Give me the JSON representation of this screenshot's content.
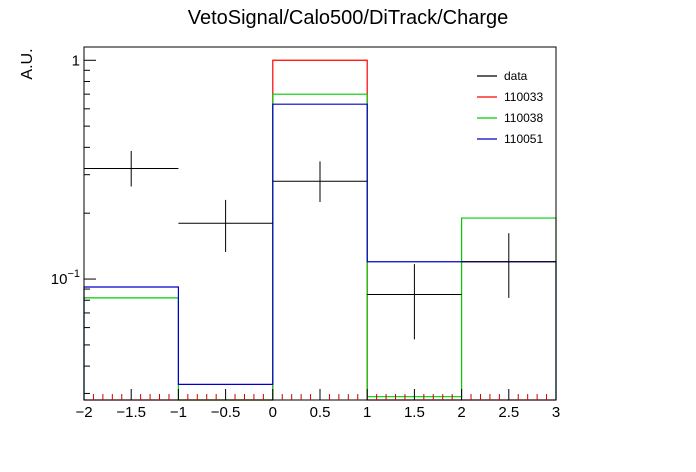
{
  "chart_data": {
    "type": "bar",
    "title": "VetoSignal/Calo500/DiTrack/Charge",
    "xlabel": "",
    "ylabel": "A.U.",
    "xlim": [
      -2,
      3
    ],
    "ylim": [
      0.028,
      1.15
    ],
    "yscale": "log",
    "grid": false,
    "legend_position": "top-right",
    "bin_edges": [
      -2,
      -1,
      0,
      1,
      2,
      3
    ],
    "x_ticks": [
      {
        "v": -2,
        "label": "−2"
      },
      {
        "v": -1.5,
        "label": "−1.5"
      },
      {
        "v": -1,
        "label": "−1"
      },
      {
        "v": -0.5,
        "label": "−0.5"
      },
      {
        "v": 0,
        "label": "0"
      },
      {
        "v": 0.5,
        "label": "0.5"
      },
      {
        "v": 1,
        "label": "1"
      },
      {
        "v": 1.5,
        "label": "1.5"
      },
      {
        "v": 2,
        "label": "2"
      },
      {
        "v": 2.5,
        "label": "2.5"
      },
      {
        "v": 3,
        "label": "3"
      }
    ],
    "y_ticks": [
      {
        "v": 1,
        "label": "1",
        "sup": ""
      },
      {
        "v": 0.1,
        "label": "10",
        "sup": "−1"
      }
    ],
    "series": [
      {
        "name": "110033",
        "kind": "hist",
        "color": "#ff0000",
        "values": [
          0.0,
          0.0,
          1.0,
          0.0,
          0.0
        ]
      },
      {
        "name": "110038",
        "kind": "hist",
        "color": "#00cc00",
        "values": [
          0.082,
          0.0,
          0.7,
          0.029,
          0.19
        ]
      },
      {
        "name": "110051",
        "kind": "hist",
        "color": "#0000cc",
        "values": [
          0.092,
          0.033,
          0.63,
          0.12,
          0.12
        ]
      },
      {
        "name": "data",
        "kind": "errorbar",
        "color": "#000000",
        "x": [
          -1.5,
          -0.5,
          0.5,
          1.5,
          2.5
        ],
        "values": [
          0.32,
          0.18,
          0.28,
          0.085,
          0.12
        ],
        "err_low": [
          0.055,
          0.047,
          0.055,
          0.032,
          0.038
        ],
        "err_high": [
          0.065,
          0.05,
          0.065,
          0.032,
          0.042
        ]
      }
    ],
    "legend": [
      {
        "name": "data",
        "color": "#000000"
      },
      {
        "name": "110033",
        "color": "#ff0000"
      },
      {
        "name": "110038",
        "color": "#00cc00"
      },
      {
        "name": "110051",
        "color": "#0000cc"
      }
    ]
  }
}
